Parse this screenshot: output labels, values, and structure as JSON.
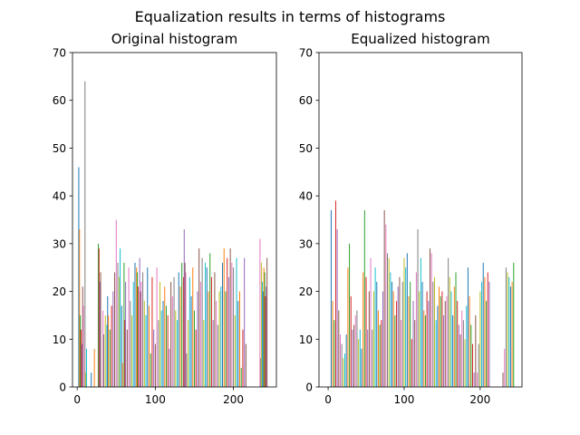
{
  "figure": {
    "suptitle": "Equalization results in terms of histograms"
  },
  "palette": [
    "#1f77b4",
    "#ff7f0e",
    "#2ca02c",
    "#d62728",
    "#9467bd",
    "#8c564b",
    "#e377c2",
    "#7f7f7f",
    "#bcbd22",
    "#17becf"
  ],
  "chart_data": [
    {
      "type": "bar",
      "title": "Original histogram",
      "xlabel": "",
      "ylabel": "",
      "xlim": [
        -6,
        255
      ],
      "ylim": [
        0,
        70
      ],
      "xticks": [
        0,
        100,
        200
      ],
      "yticks": [
        0,
        10,
        20,
        30,
        40,
        50,
        60,
        70
      ],
      "grid": false,
      "bar_width": 0.9,
      "x": [
        2,
        3,
        4,
        5,
        6,
        7,
        8,
        10,
        11,
        12,
        18,
        22,
        27,
        28,
        29,
        30,
        33,
        34,
        36,
        38,
        39,
        40,
        42,
        44,
        46,
        48,
        50,
        52,
        54,
        55,
        57,
        58,
        60,
        61,
        62,
        64,
        66,
        68,
        70,
        72,
        74,
        76,
        77,
        78,
        80,
        81,
        82,
        84,
        86,
        88,
        90,
        92,
        94,
        96,
        98,
        100,
        102,
        104,
        106,
        108,
        110,
        112,
        114,
        116,
        118,
        120,
        122,
        124,
        126,
        128,
        130,
        132,
        134,
        136,
        137,
        138,
        139,
        140,
        142,
        144,
        146,
        148,
        150,
        152,
        154,
        156,
        158,
        160,
        162,
        164,
        166,
        168,
        170,
        172,
        174,
        176,
        178,
        180,
        182,
        184,
        186,
        188,
        190,
        192,
        194,
        196,
        198,
        200,
        202,
        204,
        206,
        208,
        210,
        212,
        214,
        216,
        234,
        235,
        236,
        237,
        238,
        239,
        240,
        241,
        242,
        243
      ],
      "values": [
        46,
        33,
        15,
        12,
        9,
        21,
        17,
        64,
        3,
        8,
        3,
        8,
        30,
        29,
        22,
        24,
        16,
        11,
        15,
        13,
        19,
        15,
        12,
        17,
        20,
        24,
        35,
        26,
        23,
        29,
        17,
        5,
        26,
        14,
        22,
        12,
        25,
        18,
        15,
        22,
        26,
        25,
        24,
        21,
        27,
        20,
        22,
        24,
        18,
        15,
        25,
        17,
        7,
        23,
        12,
        9,
        25,
        14,
        22,
        16,
        18,
        21,
        17,
        15,
        8,
        22,
        19,
        23,
        16,
        14,
        24,
        21,
        26,
        23,
        33,
        26,
        24,
        7,
        14,
        23,
        19,
        25,
        16,
        12,
        20,
        29,
        22,
        27,
        14,
        26,
        25,
        20,
        28,
        23,
        14,
        24,
        18,
        13,
        20,
        21,
        26,
        29,
        20,
        27,
        23,
        29,
        26,
        25,
        15,
        27,
        18,
        20,
        4,
        12,
        27,
        9,
        31,
        6,
        26,
        22,
        20,
        25,
        24,
        19,
        21,
        27
      ]
    },
    {
      "type": "bar",
      "title": "Equalized histogram",
      "xlabel": "",
      "ylabel": "",
      "xlim": [
        -12,
        255
      ],
      "ylim": [
        0,
        70
      ],
      "xticks": [
        0,
        100,
        200
      ],
      "yticks": [
        0,
        10,
        20,
        30,
        40,
        50,
        60,
        70
      ],
      "grid": false,
      "bar_width": 0.9,
      "x": [
        4,
        6,
        8,
        10,
        12,
        14,
        16,
        18,
        20,
        22,
        24,
        26,
        28,
        30,
        32,
        34,
        36,
        38,
        40,
        42,
        44,
        46,
        48,
        50,
        52,
        54,
        56,
        58,
        60,
        62,
        64,
        66,
        68,
        70,
        72,
        74,
        76,
        78,
        80,
        82,
        84,
        86,
        88,
        90,
        92,
        94,
        96,
        98,
        100,
        102,
        104,
        106,
        108,
        110,
        112,
        114,
        116,
        118,
        120,
        122,
        124,
        126,
        128,
        130,
        132,
        134,
        136,
        138,
        140,
        142,
        144,
        146,
        148,
        150,
        152,
        154,
        156,
        158,
        160,
        162,
        164,
        166,
        168,
        170,
        172,
        174,
        176,
        178,
        180,
        182,
        184,
        186,
        188,
        190,
        192,
        194,
        196,
        198,
        200,
        202,
        204,
        206,
        208,
        210,
        212,
        230,
        232,
        234,
        236,
        238,
        240,
        242,
        244
      ],
      "values": [
        37,
        18,
        14,
        39,
        33,
        16,
        11,
        9,
        6,
        7,
        11,
        25,
        30,
        19,
        12,
        13,
        15,
        16,
        10,
        12,
        8,
        24,
        37,
        23,
        12,
        20,
        27,
        12,
        20,
        25,
        22,
        16,
        13,
        14,
        20,
        37,
        34,
        28,
        27,
        24,
        22,
        20,
        15,
        18,
        21,
        23,
        14,
        22,
        27,
        25,
        28,
        19,
        22,
        10,
        18,
        14,
        24,
        33,
        20,
        27,
        22,
        16,
        15,
        20,
        18,
        29,
        28,
        22,
        23,
        14,
        17,
        21,
        19,
        20,
        15,
        18,
        19,
        27,
        23,
        20,
        15,
        21,
        24,
        18,
        13,
        11,
        16,
        14,
        10,
        17,
        25,
        19,
        13,
        9,
        3,
        15,
        3,
        9,
        20,
        22,
        26,
        23,
        18,
        24,
        22,
        3,
        8,
        25,
        24,
        23,
        21,
        22,
        26
      ]
    }
  ]
}
